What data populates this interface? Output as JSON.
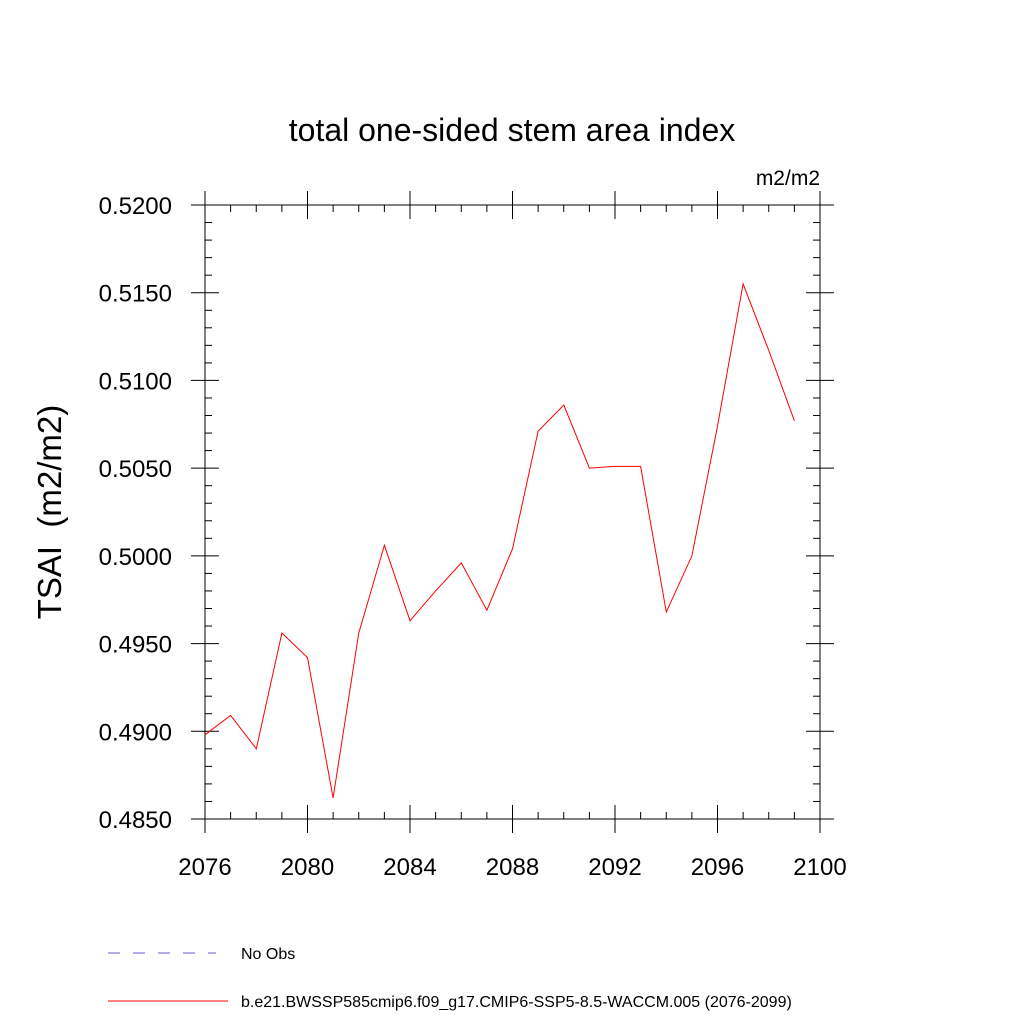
{
  "chart_data": {
    "type": "line",
    "title": "total one-sided stem area index",
    "units_label": "m2/m2",
    "ylabel": "TSAI  (m2/m2)",
    "xlabel": "",
    "xlim": [
      2076,
      2100
    ],
    "ylim": [
      0.485,
      0.52
    ],
    "x_ticks": [
      2076,
      2080,
      2084,
      2088,
      2092,
      2096,
      2100
    ],
    "x_tick_labels": [
      "2076",
      "2080",
      "2084",
      "2088",
      "2092",
      "2096",
      "2100"
    ],
    "y_ticks": [
      0.485,
      0.49,
      0.495,
      0.5,
      0.505,
      0.51,
      0.515,
      0.52
    ],
    "y_tick_labels": [
      "0.4850",
      "0.4900",
      "0.4950",
      "0.5000",
      "0.5050",
      "0.5100",
      "0.5150",
      "0.5200"
    ],
    "grid": false,
    "legend_position": "bottom",
    "series": [
      {
        "name": "b.e21.BWSSP585cmip6.f09_g17.CMIP6-SSP5-8.5-WACCM.005 (2076-2099)",
        "color": "#ff0000",
        "style": "solid",
        "x": [
          2076,
          2077,
          2078,
          2079,
          2080,
          2081,
          2082,
          2083,
          2084,
          2085,
          2086,
          2087,
          2088,
          2089,
          2090,
          2091,
          2092,
          2093,
          2094,
          2095,
          2096,
          2097,
          2098,
          2099
        ],
        "values": [
          0.4898,
          0.4909,
          0.489,
          0.4956,
          0.4942,
          0.4862,
          0.4956,
          0.5006,
          0.4963,
          0.498,
          0.4996,
          0.4969,
          0.5004,
          0.5071,
          0.5086,
          0.505,
          0.5051,
          0.5051,
          0.4968,
          0.5,
          0.5074,
          0.5155,
          0.5117,
          0.5077
        ]
      }
    ],
    "legend": [
      {
        "label": "No Obs",
        "color": "#6a5acd",
        "style": "dashed"
      },
      {
        "label": "b.e21.BWSSP585cmip6.f09_g17.CMIP6-SSP5-8.5-WACCM.005 (2076-2099)",
        "color": "#ff0000",
        "style": "solid"
      }
    ]
  }
}
